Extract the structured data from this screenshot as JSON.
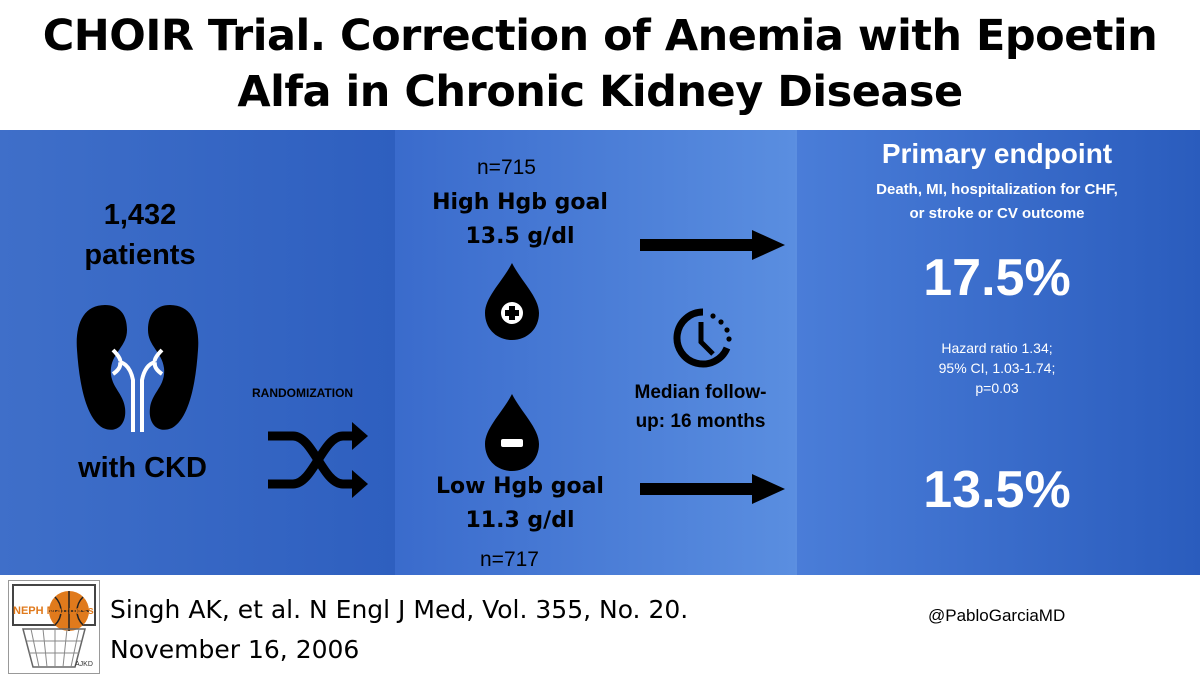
{
  "title": "CHOIR Trial. Correction of Anemia with Epoetin Alfa in Chronic Kidney Disease",
  "left": {
    "count": "1,432",
    "patients": "patients",
    "with_ckd": "with CKD",
    "randomization": "RANDOMIZATION",
    "kidney_icon": "kidneys-icon",
    "shuffle_icon": "shuffle-icon"
  },
  "middle": {
    "high_n": "n=715",
    "high_goal_line1": "High Hgb goal",
    "high_goal_line2": "13.5 g/dl",
    "low_goal_line1": "Low Hgb goal",
    "low_goal_line2": "11.3 g/dl",
    "low_n": "n=717",
    "followup_line1": "Median follow-",
    "followup_line2": "up: 16 months",
    "drop_plus_icon": "blood-drop-plus-icon",
    "drop_minus_icon": "blood-drop-minus-icon",
    "clock_icon": "clock-icon"
  },
  "right": {
    "heading": "Primary endpoint",
    "subheading_line1": "Death, MI, hospitalization for CHF,",
    "subheading_line2": "or stroke or CV outcome",
    "high_value": "17.5%",
    "hr_line1": "Hazard ratio 1.34;",
    "hr_line2": "95% CI, 1.03-1.74;",
    "hr_line3": "p=0.03",
    "low_value": "13.5%"
  },
  "footer": {
    "citation_line1": "Singh AK, et al. N Engl J Med, Vol. 355, No. 20.",
    "citation_line2": "November 16, 2006",
    "handle": "@PabloGarciaMD",
    "logo_text": "NEPH Madness",
    "logo_small": "AJKD"
  },
  "colors": {
    "panel_blue": "#3a6bcc",
    "text": "#000000",
    "highlight": "#ffffff"
  }
}
